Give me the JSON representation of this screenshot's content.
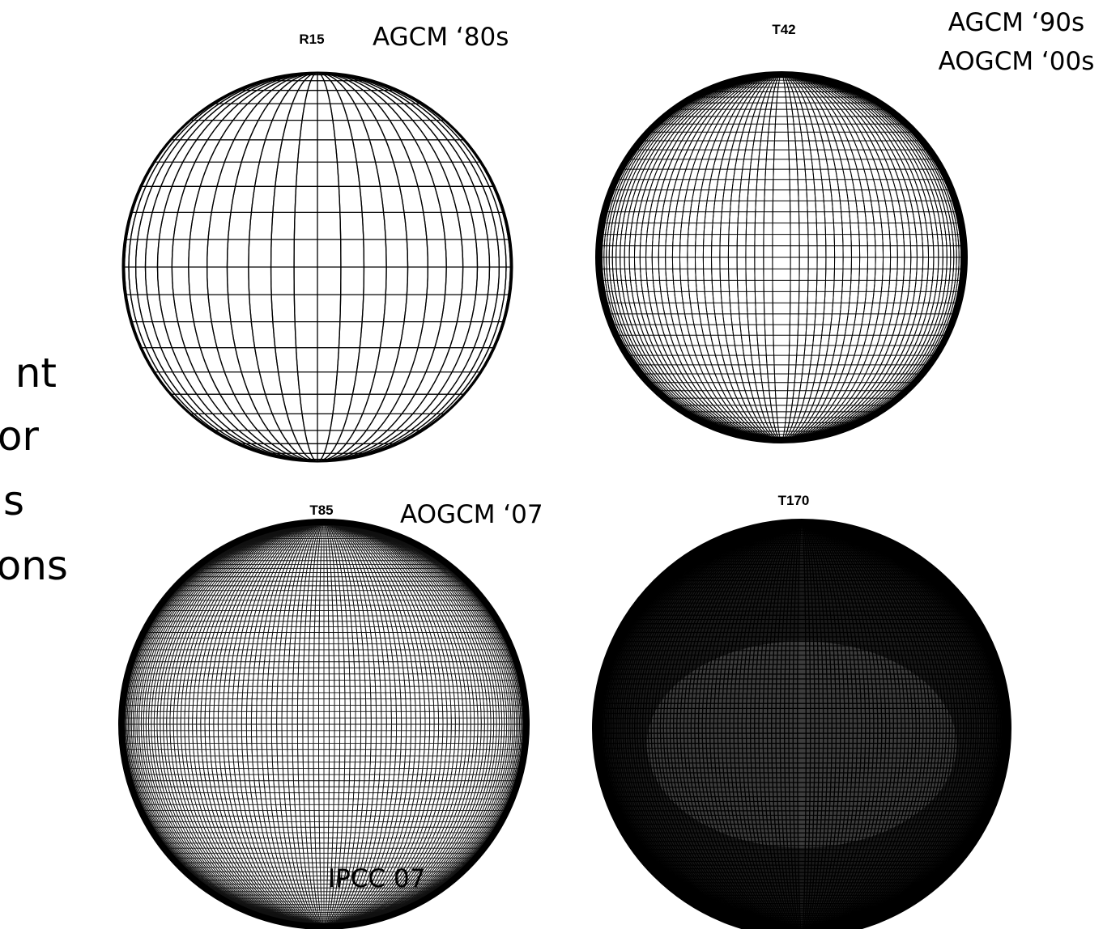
{
  "side_text": [
    "nt",
    "or",
    "s",
    "ons"
  ],
  "panels": [
    {
      "label": "R15",
      "notes": [
        "AGCM ‘80s"
      ]
    },
    {
      "label": "T42",
      "notes": [
        "AGCM ‘90s",
        "AOGCM ‘00s"
      ]
    },
    {
      "label": "T85",
      "notes": [
        "AOGCM ‘07"
      ]
    },
    {
      "label": "T170",
      "notes": []
    }
  ],
  "source": "IPCC 07"
}
